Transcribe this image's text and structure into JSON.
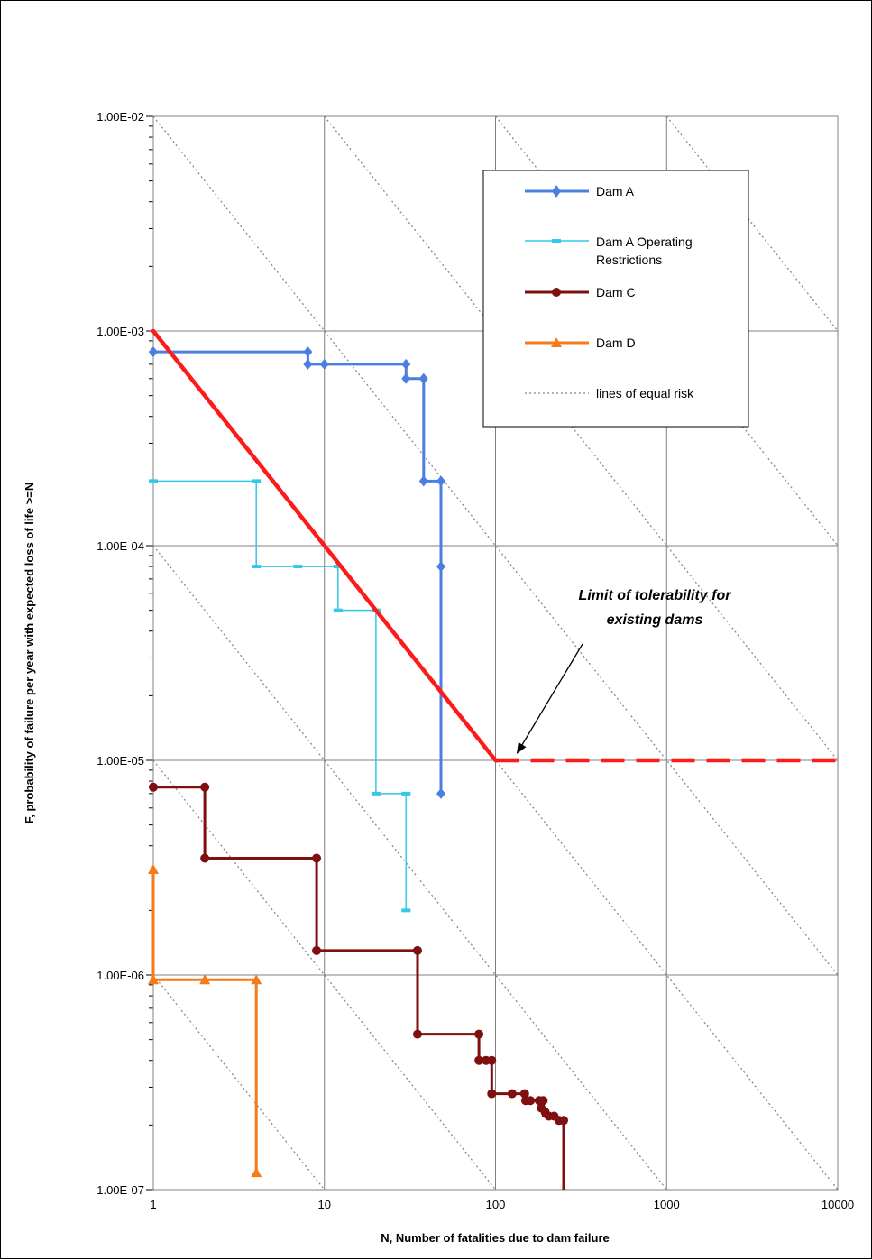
{
  "chart_data": {
    "type": "line",
    "xlabel": "N, Number of fatalities due to dam failure",
    "ylabel": "F, probability of failure per year with expected loss of life >=N",
    "xscale": "log",
    "yscale": "log",
    "xlim": [
      1,
      10000
    ],
    "ylim": [
      1e-07,
      0.01
    ],
    "grid": true,
    "legend_position": "top-right",
    "x_tick_labels": [
      "1",
      "10",
      "100",
      "1000",
      "10000"
    ],
    "y_tick_labels": [
      "1.00E-07",
      "1.00E-06",
      "1.00E-05",
      "1.00E-04",
      "1.00E-03",
      "1.00E-02"
    ],
    "series": [
      {
        "name": "Dam A",
        "color": "#4a7fe0",
        "marker": "diamond",
        "points": [
          [
            1,
            0.0008
          ],
          [
            8,
            0.0008
          ],
          [
            8,
            0.0007
          ],
          [
            10,
            0.0007
          ],
          [
            30,
            0.0007
          ],
          [
            30,
            0.0006
          ],
          [
            38,
            0.0006
          ],
          [
            38,
            0.0002
          ],
          [
            48,
            0.0002
          ],
          [
            48,
            8e-05
          ],
          [
            48,
            7e-06
          ]
        ],
        "marker_points": [
          [
            1,
            0.0008
          ],
          [
            8,
            0.0008
          ],
          [
            8,
            0.0007
          ],
          [
            10,
            0.0007
          ],
          [
            30,
            0.0007
          ],
          [
            30,
            0.0006
          ],
          [
            38,
            0.0006
          ],
          [
            38,
            0.0002
          ],
          [
            48,
            0.0002
          ],
          [
            48,
            8e-05
          ],
          [
            48,
            7e-06
          ]
        ]
      },
      {
        "name": "Dam A Operating Restrictions",
        "color": "#33c8e8",
        "marker": "dash",
        "points": [
          [
            1,
            0.0002
          ],
          [
            4,
            0.0002
          ],
          [
            4,
            8e-05
          ],
          [
            12,
            8e-05
          ],
          [
            12,
            5e-05
          ],
          [
            20,
            5e-05
          ],
          [
            20,
            7e-06
          ],
          [
            30,
            7e-06
          ],
          [
            30,
            2e-06
          ]
        ],
        "marker_points": [
          [
            1,
            0.0002
          ],
          [
            4,
            0.0002
          ],
          [
            4,
            8e-05
          ],
          [
            7,
            8e-05
          ],
          [
            12,
            8e-05
          ],
          [
            12,
            5e-05
          ],
          [
            20,
            5e-05
          ],
          [
            20,
            7e-06
          ],
          [
            30,
            7e-06
          ],
          [
            30,
            2e-06
          ]
        ]
      },
      {
        "name": "Dam C",
        "color": "#7f1010",
        "marker": "circle",
        "points": [
          [
            1,
            7.5e-06
          ],
          [
            2,
            7.5e-06
          ],
          [
            2,
            3.5e-06
          ],
          [
            9,
            3.5e-06
          ],
          [
            9,
            1.3e-06
          ],
          [
            35,
            1.3e-06
          ],
          [
            35,
            5.3e-07
          ],
          [
            80,
            5.3e-07
          ],
          [
            80,
            4e-07
          ],
          [
            95,
            4e-07
          ],
          [
            95,
            2.8e-07
          ],
          [
            150,
            2.8e-07
          ],
          [
            150,
            2.6e-07
          ],
          [
            190,
            2.6e-07
          ],
          [
            190,
            2.2e-07
          ],
          [
            250,
            2.1e-07
          ],
          [
            250,
            1e-07
          ]
        ],
        "marker_points": [
          [
            1,
            7.5e-06
          ],
          [
            2,
            7.5e-06
          ],
          [
            2,
            3.5e-06
          ],
          [
            9,
            3.5e-06
          ],
          [
            9,
            1.3e-06
          ],
          [
            35,
            1.3e-06
          ],
          [
            35,
            5.3e-07
          ],
          [
            80,
            5.3e-07
          ],
          [
            80,
            4e-07
          ],
          [
            88,
            4e-07
          ],
          [
            95,
            4e-07
          ],
          [
            95,
            2.8e-07
          ],
          [
            125,
            2.8e-07
          ],
          [
            148,
            2.8e-07
          ],
          [
            150,
            2.6e-07
          ],
          [
            160,
            2.6e-07
          ],
          [
            180,
            2.6e-07
          ],
          [
            185,
            2.4e-07
          ],
          [
            190,
            2.6e-07
          ],
          [
            195,
            2.3e-07
          ],
          [
            205,
            2.2e-07
          ],
          [
            220,
            2.2e-07
          ],
          [
            235,
            2.1e-07
          ],
          [
            250,
            2.1e-07
          ]
        ]
      },
      {
        "name": "Dam D",
        "color": "#f57a1a",
        "marker": "triangle",
        "points": [
          [
            1,
            3.1e-06
          ],
          [
            1,
            9.5e-07
          ],
          [
            2,
            9.5e-07
          ],
          [
            4,
            9.5e-07
          ],
          [
            4,
            1.2e-07
          ]
        ],
        "marker_points": [
          [
            1,
            3.1e-06
          ],
          [
            1,
            9.5e-07
          ],
          [
            2,
            9.5e-07
          ],
          [
            4,
            9.5e-07
          ],
          [
            4,
            1.2e-07
          ]
        ]
      },
      {
        "name": "lines of equal risk",
        "color": "#888888",
        "style": "dotted",
        "risk_levels": [
          1e-07,
          1e-06,
          1e-05,
          0.0001,
          0.001,
          0.01,
          0.1,
          1,
          10
        ]
      }
    ],
    "limit_line": {
      "color": "#ff1a1a",
      "solid_segment": [
        [
          1,
          0.001
        ],
        [
          100,
          1e-05
        ]
      ],
      "dashed_segment": [
        [
          100,
          1e-05
        ],
        [
          10000,
          1e-05
        ]
      ]
    },
    "annotation": {
      "lines": [
        "Limit of tolerability for",
        "existing dams"
      ],
      "arrow_target": [
        100,
        1e-05
      ]
    }
  }
}
